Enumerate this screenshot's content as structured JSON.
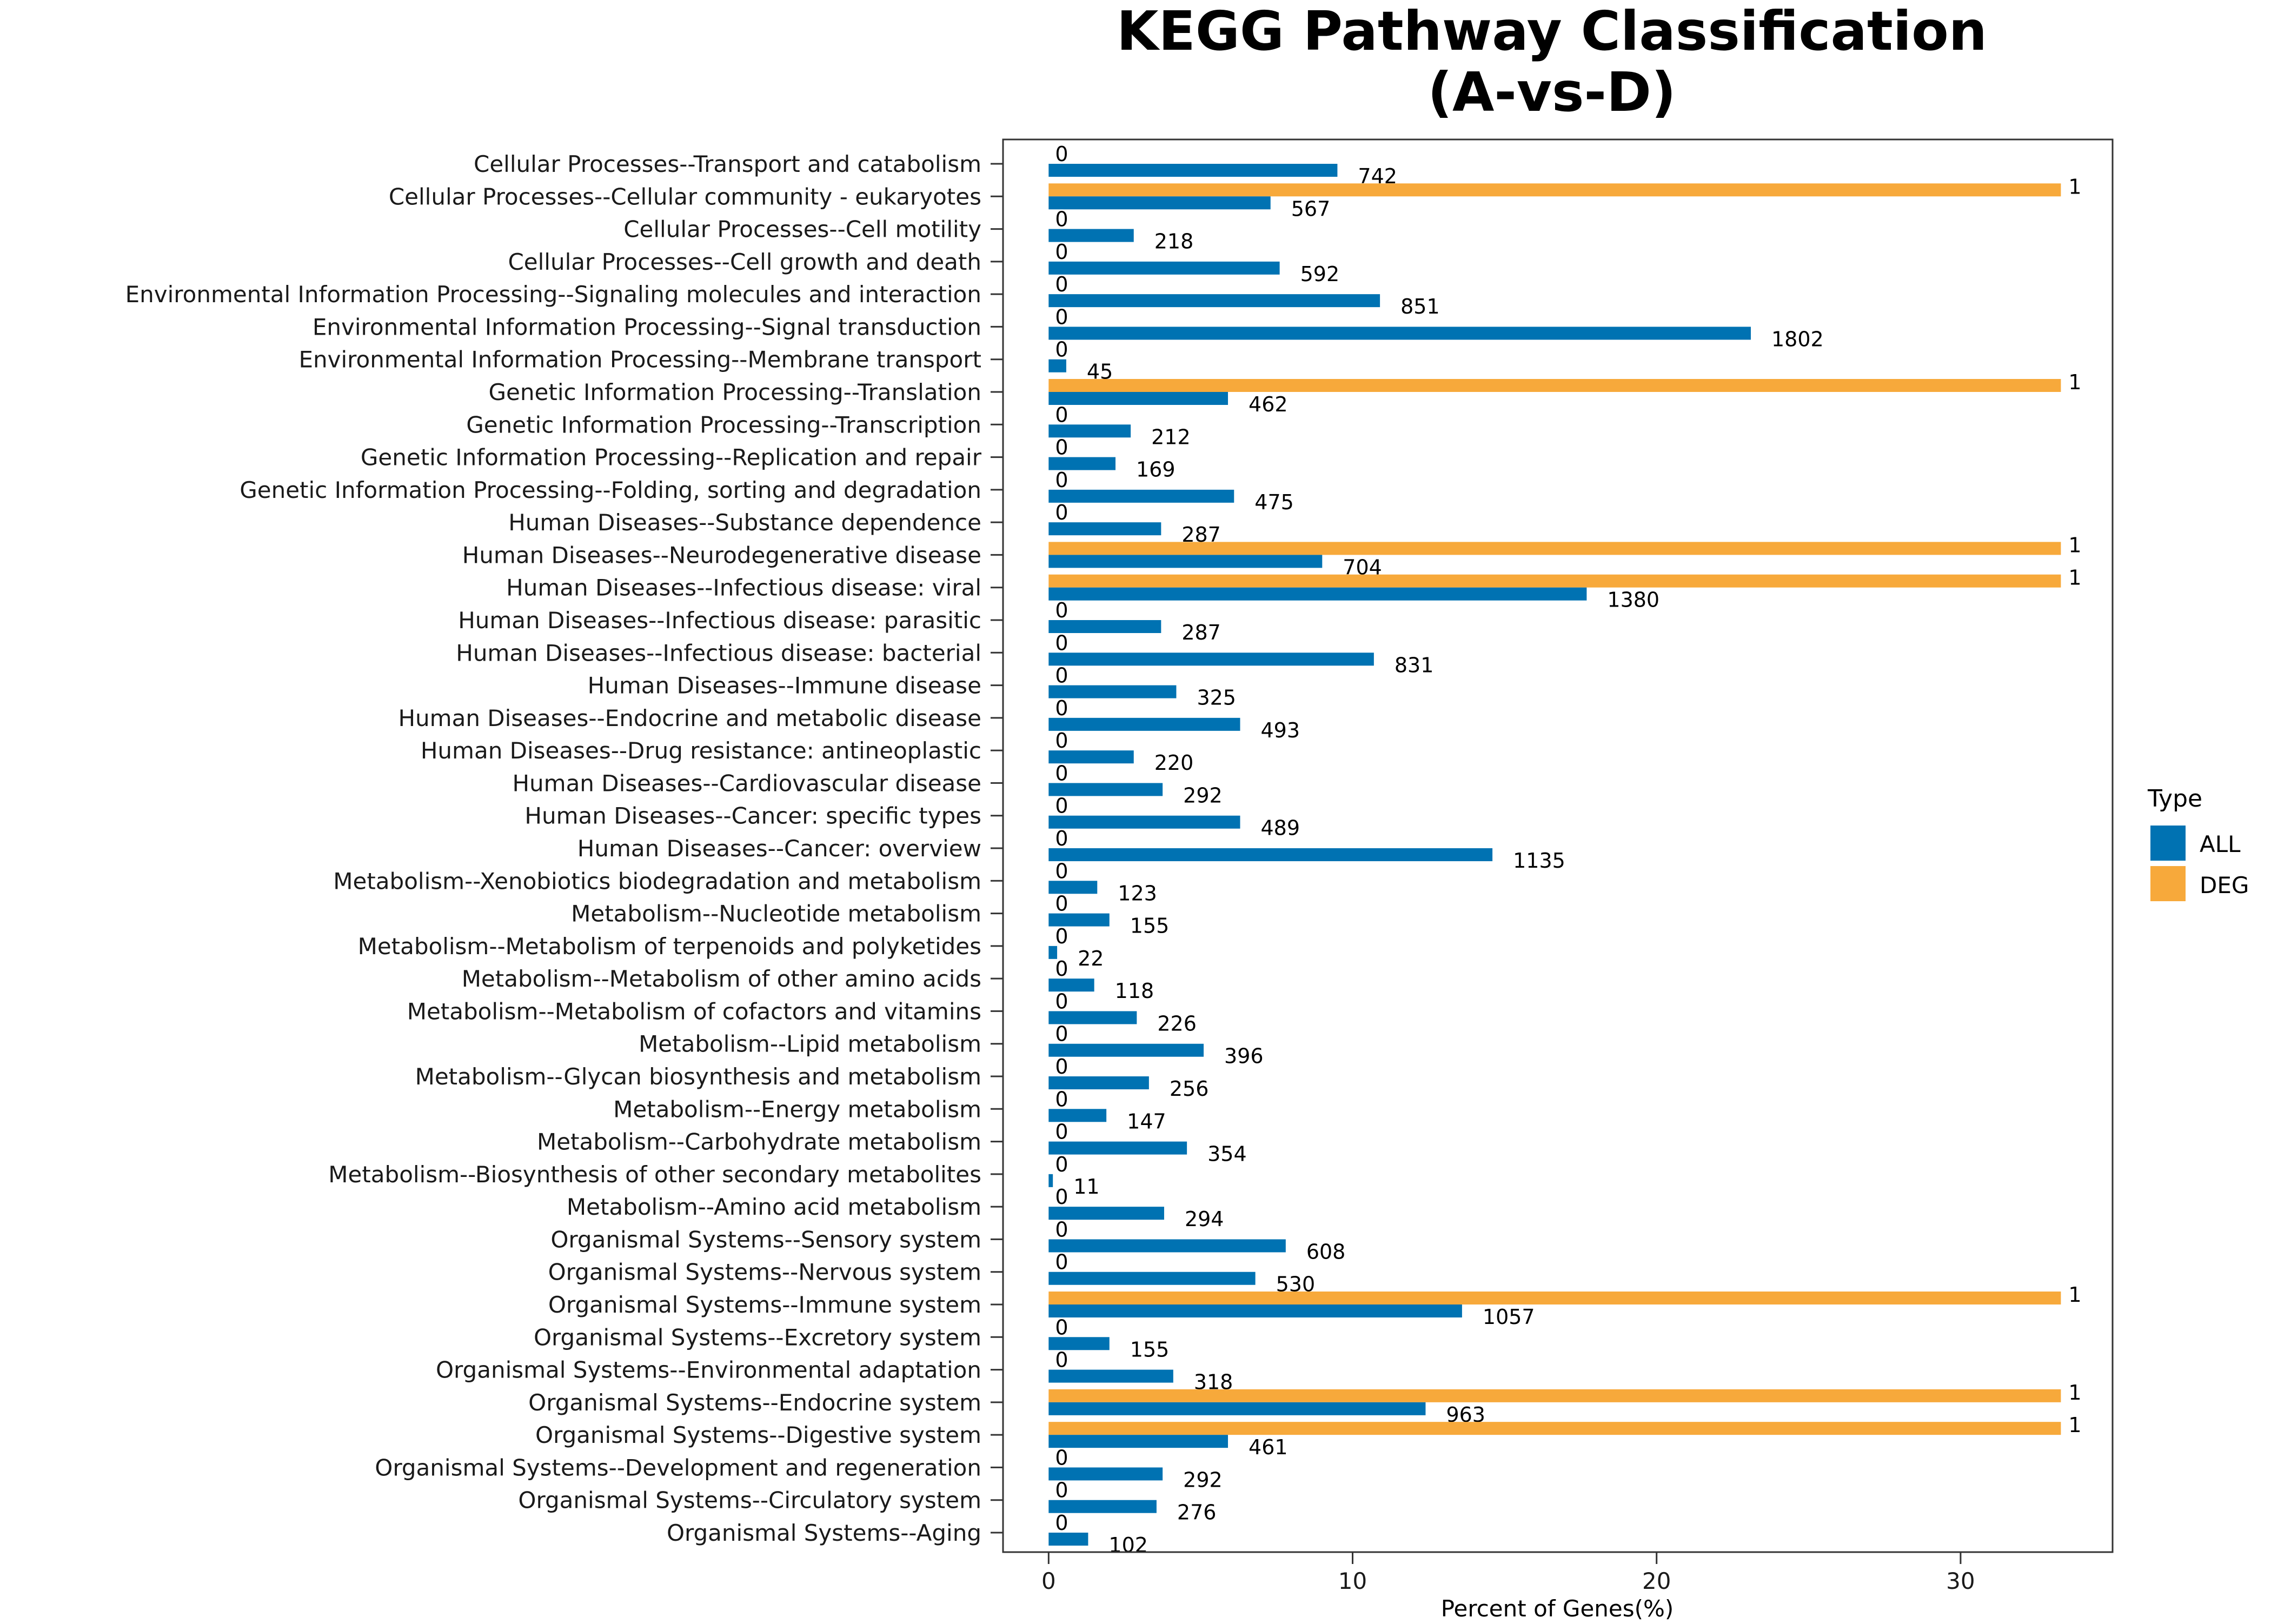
{
  "chart_data": {
    "type": "bar",
    "orientation": "horizontal",
    "title": "KEGG Pathway Classification",
    "subtitle": "(A-vs-D)",
    "xlabel": "Percent of Genes(%)",
    "ylabel": "",
    "xlim": [
      -1.5,
      35
    ],
    "xticks": [
      0,
      10,
      20,
      30
    ],
    "grid": false,
    "legend": {
      "title": "Type",
      "position": "right"
    },
    "series": [
      {
        "name": "ALL",
        "color": "#0072b2"
      },
      {
        "name": "DEG",
        "color": "#f7a93b"
      }
    ],
    "categories": [
      "Cellular Processes--Transport and catabolism",
      "Cellular Processes--Cellular community - eukaryotes",
      "Cellular Processes--Cell motility",
      "Cellular Processes--Cell growth and death",
      "Environmental Information Processing--Signaling molecules and interaction",
      "Environmental Information Processing--Signal transduction",
      "Environmental Information Processing--Membrane transport",
      "Genetic Information Processing--Translation",
      "Genetic Information Processing--Transcription",
      "Genetic Information Processing--Replication and repair",
      "Genetic Information Processing--Folding, sorting and degradation",
      "Human Diseases--Substance dependence",
      "Human Diseases--Neurodegenerative disease",
      "Human Diseases--Infectious disease: viral",
      "Human Diseases--Infectious disease: parasitic",
      "Human Diseases--Infectious disease: bacterial",
      "Human Diseases--Immune disease",
      "Human Diseases--Endocrine and metabolic disease",
      "Human Diseases--Drug resistance: antineoplastic",
      "Human Diseases--Cardiovascular disease",
      "Human Diseases--Cancer: specific types",
      "Human Diseases--Cancer: overview",
      "Metabolism--Xenobiotics biodegradation and metabolism",
      "Metabolism--Nucleotide metabolism",
      "Metabolism--Metabolism of terpenoids and polyketides",
      "Metabolism--Metabolism of other amino acids",
      "Metabolism--Metabolism of cofactors and vitamins",
      "Metabolism--Lipid metabolism",
      "Metabolism--Glycan biosynthesis and metabolism",
      "Metabolism--Energy metabolism",
      "Metabolism--Carbohydrate metabolism",
      "Metabolism--Biosynthesis of other secondary metabolites",
      "Metabolism--Amino acid metabolism",
      "Organismal Systems--Sensory system",
      "Organismal Systems--Nervous system",
      "Organismal Systems--Immune system",
      "Organismal Systems--Excretory system",
      "Organismal Systems--Environmental adaptation",
      "Organismal Systems--Endocrine system",
      "Organismal Systems--Digestive system",
      "Organismal Systems--Development and regeneration",
      "Organismal Systems--Circulatory system",
      "Organismal Systems--Aging"
    ],
    "all_percent": [
      9.5,
      7.3,
      2.8,
      7.6,
      10.9,
      23.1,
      0.58,
      5.9,
      2.7,
      2.2,
      6.1,
      3.7,
      9.0,
      17.7,
      3.7,
      10.7,
      4.2,
      6.3,
      2.8,
      3.75,
      6.3,
      14.6,
      1.6,
      2.0,
      0.28,
      1.5,
      2.9,
      5.1,
      3.3,
      1.9,
      4.55,
      0.14,
      3.8,
      7.8,
      6.8,
      13.6,
      2.0,
      4.1,
      12.4,
      5.9,
      3.75,
      3.55,
      1.3
    ],
    "all_labels": [
      "742",
      "567",
      "218",
      "592",
      "851",
      "1802",
      "45",
      "462",
      "212",
      "169",
      "475",
      "287",
      "704",
      "1380",
      "287",
      "831",
      "325",
      "493",
      "220",
      "292",
      "489",
      "1135",
      "123",
      "155",
      "22",
      "118",
      "226",
      "396",
      "256",
      "147",
      "354",
      "11",
      "294",
      "608",
      "530",
      "1057",
      "155",
      "318",
      "963",
      "461",
      "292",
      "276",
      "102"
    ],
    "deg_percent": [
      0,
      33.3,
      0,
      0,
      0,
      0,
      0,
      33.3,
      0,
      0,
      0,
      0,
      33.3,
      33.3,
      0,
      0,
      0,
      0,
      0,
      0,
      0,
      0,
      0,
      0,
      0,
      0,
      0,
      0,
      0,
      0,
      0,
      0,
      0,
      0,
      0,
      33.3,
      0,
      0,
      33.3,
      33.3,
      0,
      0,
      0
    ],
    "deg_labels": [
      "0",
      "1",
      "0",
      "0",
      "0",
      "0",
      "0",
      "1",
      "0",
      "0",
      "0",
      "0",
      "1",
      "1",
      "0",
      "0",
      "0",
      "0",
      "0",
      "0",
      "0",
      "0",
      "0",
      "0",
      "0",
      "0",
      "0",
      "0",
      "0",
      "0",
      "0",
      "0",
      "0",
      "0",
      "0",
      "1",
      "0",
      "0",
      "1",
      "1",
      "0",
      "0",
      "0"
    ]
  }
}
